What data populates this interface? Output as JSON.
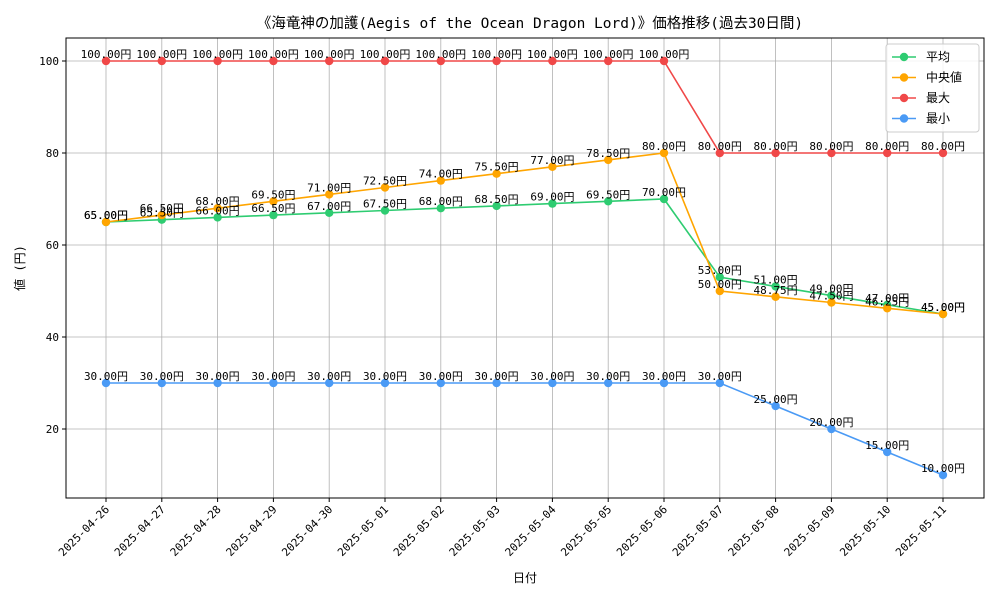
{
  "chart_data": {
    "type": "line",
    "title": "《海竜神の加護(Aegis of the Ocean Dragon Lord)》価格推移(過去30日間)",
    "xlabel": "日付",
    "ylabel": "値 (円)",
    "x": [
      "2025-04-26",
      "2025-04-27",
      "2025-04-28",
      "2025-04-29",
      "2025-04-30",
      "2025-05-01",
      "2025-05-02",
      "2025-05-03",
      "2025-05-04",
      "2025-05-05",
      "2025-05-06",
      "2025-05-07",
      "2025-05-08",
      "2025-05-09",
      "2025-05-10",
      "2025-05-11"
    ],
    "ylim": [
      5,
      105
    ],
    "yticks": [
      20,
      40,
      60,
      80,
      100
    ],
    "grid": true,
    "legend_position": "top-right",
    "label_suffix": "円",
    "series": [
      {
        "name": "平均",
        "color": "#2ecc71",
        "values": [
          65.0,
          65.5,
          66.0,
          66.5,
          67.0,
          67.5,
          68.0,
          68.5,
          69.0,
          69.5,
          70.0,
          53.0,
          51.0,
          49.0,
          47.0,
          45.0
        ]
      },
      {
        "name": "中央値",
        "color": "#ffa500",
        "values": [
          65.0,
          66.5,
          68.0,
          69.5,
          71.0,
          72.5,
          74.0,
          75.5,
          77.0,
          78.5,
          80.0,
          50.0,
          48.75,
          47.5,
          46.25,
          45.0
        ]
      },
      {
        "name": "最大",
        "color": "#f04848",
        "values": [
          100.0,
          100.0,
          100.0,
          100.0,
          100.0,
          100.0,
          100.0,
          100.0,
          100.0,
          100.0,
          100.0,
          80.0,
          80.0,
          80.0,
          80.0,
          80.0
        ]
      },
      {
        "name": "最小",
        "color": "#4a9af5",
        "values": [
          30.0,
          30.0,
          30.0,
          30.0,
          30.0,
          30.0,
          30.0,
          30.0,
          30.0,
          30.0,
          30.0,
          30.0,
          25.0,
          20.0,
          15.0,
          10.0
        ]
      }
    ]
  }
}
